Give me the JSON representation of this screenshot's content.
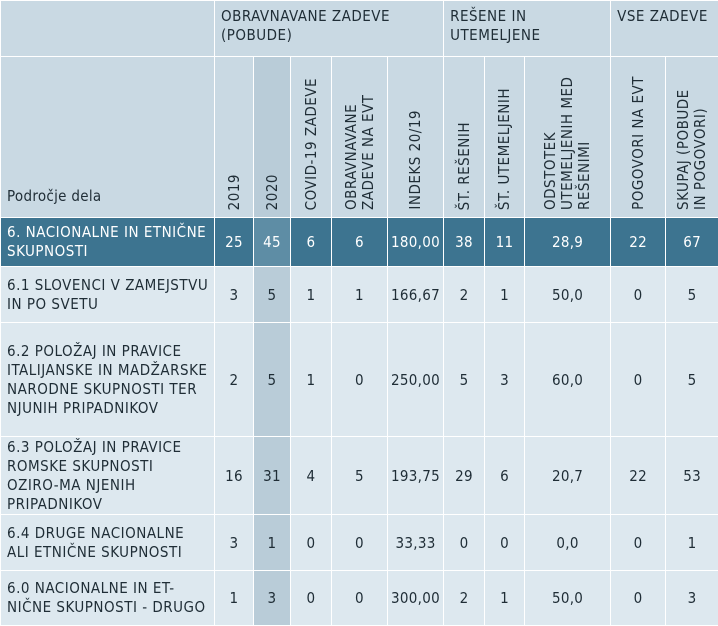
{
  "groups": {
    "obravnavane": "OBRAVNAVANE ZADEVE (POBUDE)",
    "resene": "REŠENE IN UTEMELJENE",
    "vse": "VSE ZADEVE"
  },
  "columns": {
    "area": "Področje dela",
    "y2019": "2019",
    "y2020": "2020",
    "covid": "COVID-19 ZADEVE",
    "evt": "OBRAVNAVANE ZADEVE NA EVT",
    "index": "INDEKS 20/19",
    "resenih": "ŠT. REŠENIH",
    "utemeljenih": "ŠT. UTEMELJENIH",
    "odstotek": "ODSTOTEK UTEMELJENIH MED REŠENIMI",
    "pogovori": "POGOVORI NA EVT",
    "skupaj": "SKUPAJ (POBUDE IN POGOVORI)"
  },
  "rows": [
    {
      "name": "6.  NACIONALNE IN ETNIČNE SKUPNOSTI",
      "y2019": "25",
      "y2020": "45",
      "covid": "6",
      "evt": "6",
      "index": "180,00",
      "resenih": "38",
      "utemeljenih": "11",
      "odstotek": "28,9",
      "pogovori": "22",
      "skupaj": "67"
    },
    {
      "name": "6.1  SLOVENCI V ZAMEJSTVU IN PO SVETU",
      "y2019": "3",
      "y2020": "5",
      "covid": "1",
      "evt": "1",
      "index": "166,67",
      "resenih": "2",
      "utemeljenih": "1",
      "odstotek": "50,0",
      "pogovori": "0",
      "skupaj": "5"
    },
    {
      "name": "6.2  POLOŽAJ IN PRAVICE ITALIJANSKE IN MADŽARSKE NARODNE SKUPNOSTI TER NJUNIH PRIPADNIKOV",
      "y2019": "2",
      "y2020": "5",
      "covid": "1",
      "evt": "0",
      "index": "250,00",
      "resenih": "5",
      "utemeljenih": "3",
      "odstotek": "60,0",
      "pogovori": "0",
      "skupaj": "5"
    },
    {
      "name": "6.3  POLOŽAJ IN PRAVICE ROMSKE SKUPNOSTI OZIRO-MA NJENIH PRIPADNIKOV",
      "y2019": "16",
      "y2020": "31",
      "covid": "4",
      "evt": "5",
      "index": "193,75",
      "resenih": "29",
      "utemeljenih": "6",
      "odstotek": "20,7",
      "pogovori": "22",
      "skupaj": "53"
    },
    {
      "name": "6.4  DRUGE NACIONALNE ALI ETNIČNE SKUPNOSTI",
      "y2019": "3",
      "y2020": "1",
      "covid": "0",
      "evt": "0",
      "index": "33,33",
      "resenih": "0",
      "utemeljenih": "0",
      "odstotek": "0,0",
      "pogovori": "0",
      "skupaj": "1"
    },
    {
      "name": "6.0  NACIONALNE IN ET-NIČNE SKUPNOSTI - DRUGO",
      "y2019": "1",
      "y2020": "3",
      "covid": "0",
      "evt": "0",
      "index": "300,00",
      "resenih": "2",
      "utemeljenih": "1",
      "odstotek": "50,0",
      "pogovori": "0",
      "skupaj": "3"
    }
  ]
}
